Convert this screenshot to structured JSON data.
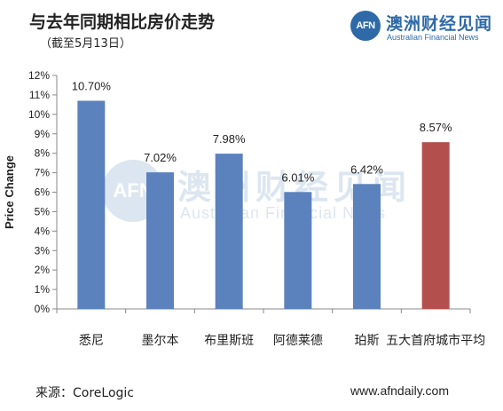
{
  "header": {
    "title": "与去年同期相比房价走势",
    "subtitle": "（截至5月13日）"
  },
  "logo": {
    "mark": "AFN",
    "name_cn": "澳洲财经见闻",
    "name_en": "Australian Financial News"
  },
  "watermark": {
    "mark": "AFN",
    "name_cn": "澳洲财经见闻",
    "name_en": "Australian Financial News"
  },
  "footer": {
    "source": "来源：CoreLogic",
    "url": "www.afndaily.com"
  },
  "colors": {
    "blue_bar": "#5b82bd",
    "red_bar": "#b3504d",
    "brand": "#2f6aa8"
  },
  "chart_data": {
    "type": "bar",
    "title": "与去年同期相比房价走势",
    "subtitle": "（截至5月13日）",
    "xlabel": "",
    "ylabel": "Price Change",
    "ylim": [
      0,
      12
    ],
    "yticks": [
      "0%",
      "1%",
      "2%",
      "3%",
      "4%",
      "5%",
      "6%",
      "7%",
      "8%",
      "9%",
      "10%",
      "11%",
      "12%"
    ],
    "categories": [
      "悉尼",
      "墨尔本",
      "布里斯班",
      "阿德莱德",
      "珀斯",
      "五大首府城市平均"
    ],
    "values": [
      10.7,
      7.02,
      7.98,
      6.01,
      6.42,
      8.57
    ],
    "data_labels": [
      "10.70%",
      "7.02%",
      "7.98%",
      "6.01%",
      "6.42%",
      "8.57%"
    ],
    "bar_colors": [
      "#5b82bd",
      "#5b82bd",
      "#5b82bd",
      "#5b82bd",
      "#5b82bd",
      "#b3504d"
    ],
    "grid": false,
    "legend": "none"
  }
}
